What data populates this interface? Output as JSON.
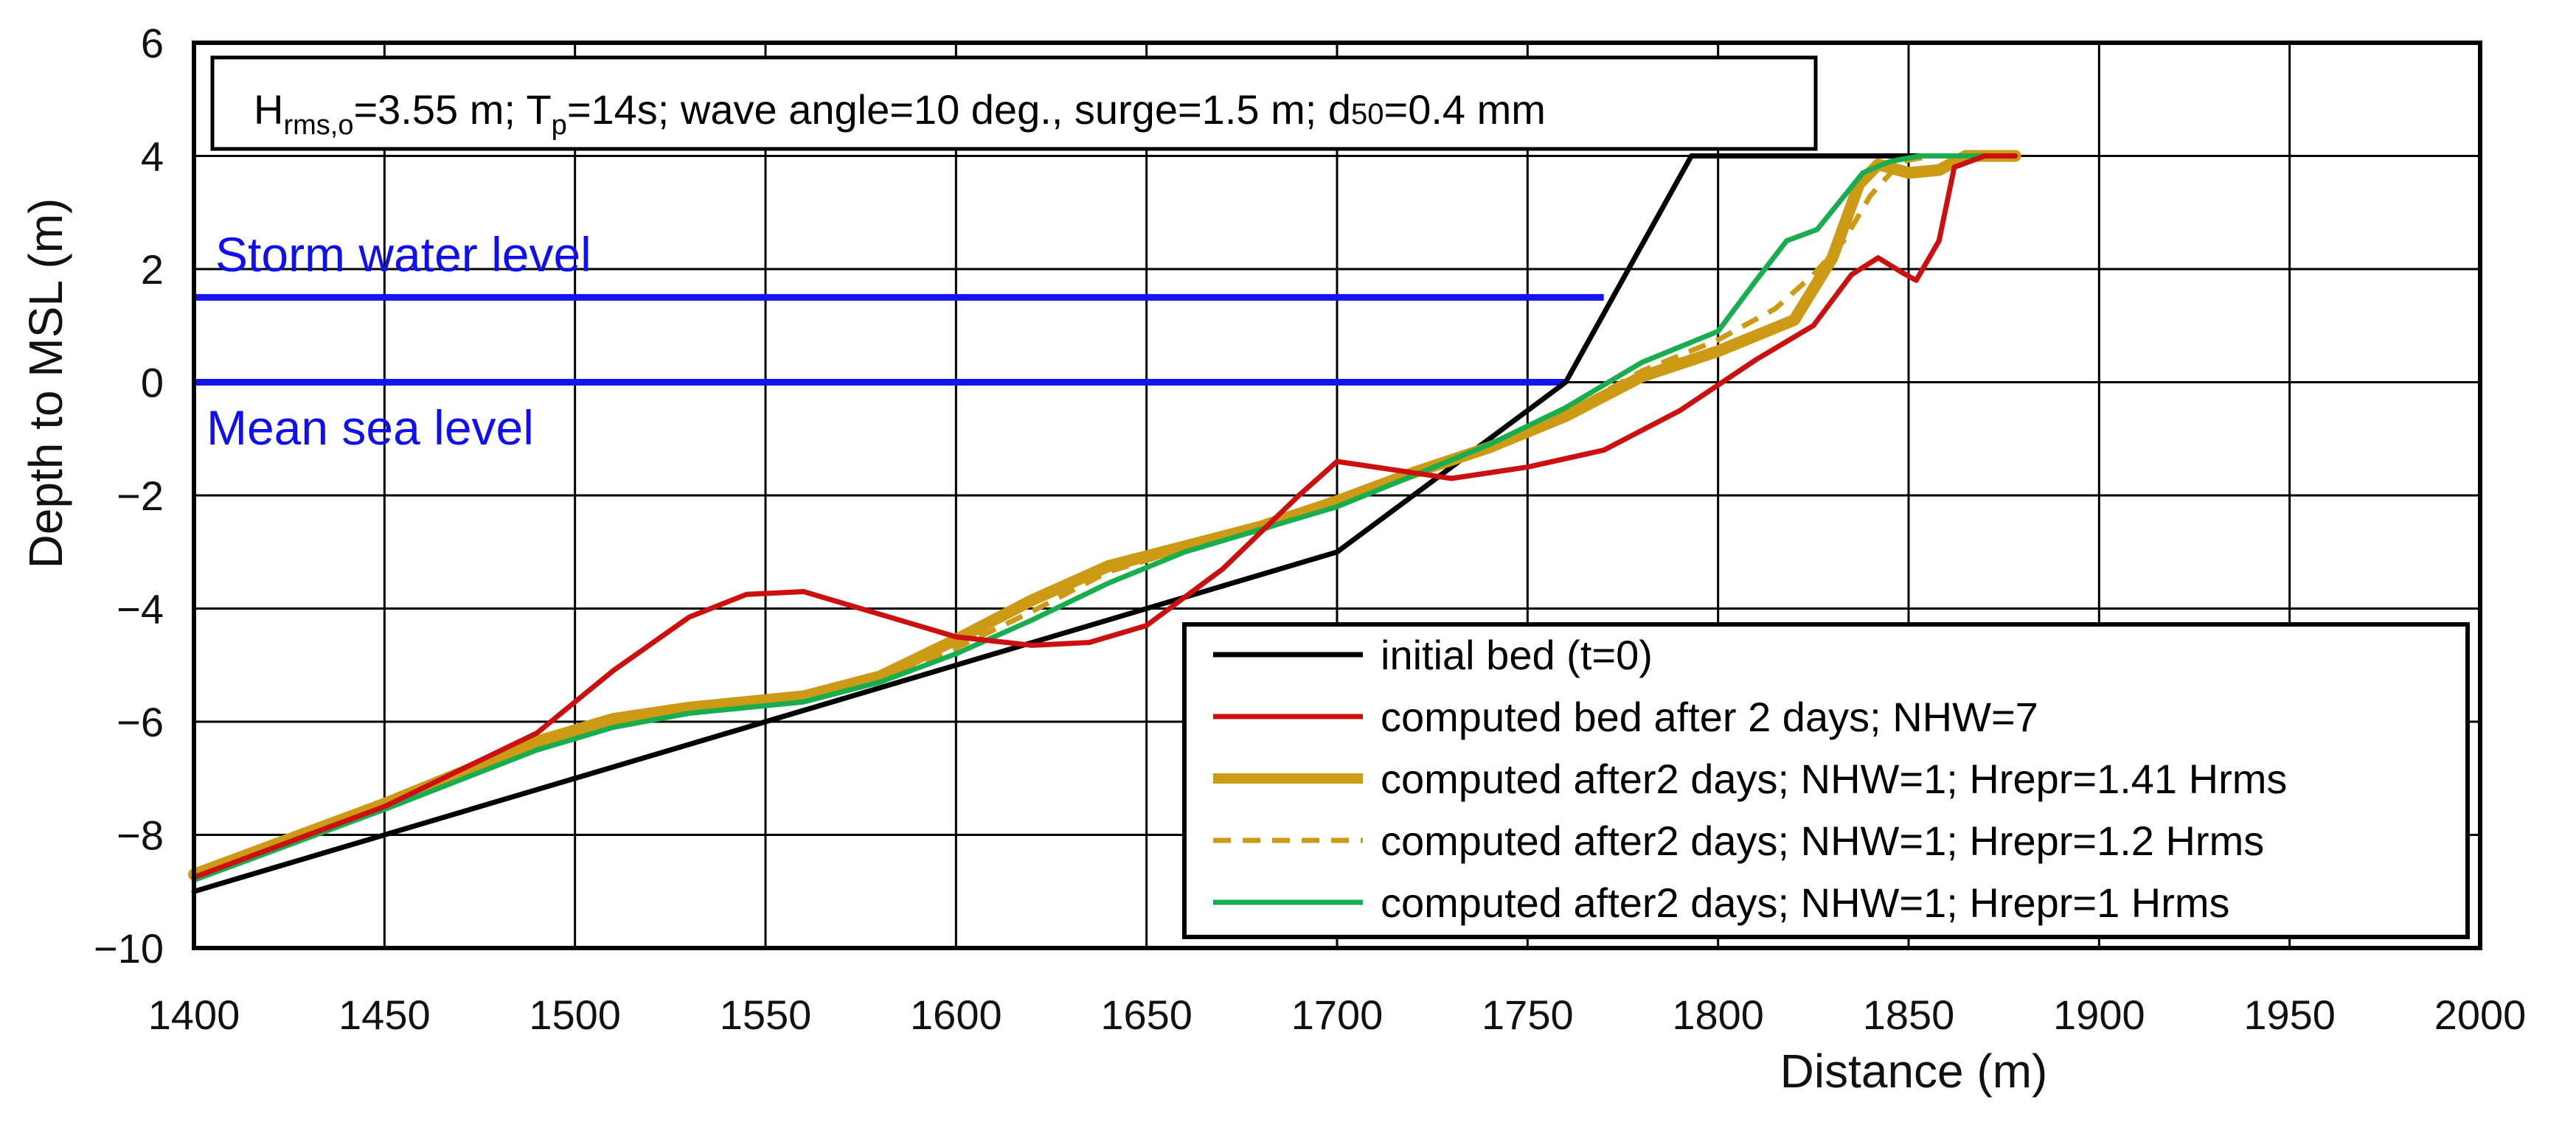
{
  "chart_data": {
    "type": "line",
    "title": "",
    "info_box": {
      "H_main": "H",
      "H_sub": "rms,o",
      "after_H": "=3.55 m; T",
      "T_sub": "p",
      "after_T": "=14s; wave angle=10 deg., surge=1.5 m; d",
      "d_sub": "50",
      "after_d": "=0.4 mm"
    },
    "xlabel": "Distance (m)",
    "ylabel": "Depth to MSL (m)",
    "xlim": [
      1400,
      2000
    ],
    "ylim": [
      -10,
      6
    ],
    "xticks": [
      1400,
      1450,
      1500,
      1550,
      1600,
      1650,
      1700,
      1750,
      1800,
      1850,
      1900,
      1950,
      2000
    ],
    "yticks": [
      6,
      4,
      2,
      0,
      -2,
      -4,
      -6,
      -8,
      -10
    ],
    "ytick_labels": [
      "6",
      "4",
      "2",
      "0",
      "−2",
      "−4",
      "−6",
      "−8",
      "−10"
    ],
    "grid": true,
    "legend_position": "lower-right",
    "reference_lines": [
      {
        "name": "Storm water level",
        "y": 1.5,
        "x_range": [
          1400,
          1770
        ],
        "color": "#1414ee",
        "label_position": "above"
      },
      {
        "name": "Mean sea level",
        "y": 0,
        "x_range": [
          1400,
          1760
        ],
        "color": "#1414ee",
        "label_position": "below"
      }
    ],
    "series": [
      {
        "name": "initial bed (t=0)",
        "color": "#000000",
        "style": "solid",
        "width": "normal",
        "x": [
          1400,
          1700,
          1760,
          1793,
          1878
        ],
        "y": [
          -9,
          -3,
          0,
          4,
          4
        ]
      },
      {
        "name": "computed bed after 2 days; NHW=7",
        "color": "#cc1010",
        "style": "solid",
        "width": "normal",
        "x": [
          1400,
          1450,
          1490,
          1510,
          1530,
          1545,
          1560,
          1580,
          1600,
          1620,
          1635,
          1650,
          1670,
          1690,
          1700,
          1710,
          1730,
          1750,
          1770,
          1790,
          1810,
          1825,
          1835,
          1842,
          1848,
          1852,
          1858,
          1862,
          1870,
          1878
        ],
        "y": [
          -8.75,
          -7.5,
          -6.2,
          -5.1,
          -4.15,
          -3.75,
          -3.7,
          -4.1,
          -4.5,
          -4.65,
          -4.6,
          -4.3,
          -3.3,
          -2.0,
          -1.4,
          -1.5,
          -1.7,
          -1.5,
          -1.2,
          -0.5,
          0.4,
          1.0,
          1.9,
          2.2,
          1.95,
          1.8,
          2.5,
          3.8,
          4.0,
          4.0
        ]
      },
      {
        "name": "computed after2 days; NHW=1; Hrepr=1.41 Hrms",
        "color": "#cc9a15",
        "style": "thick",
        "width": "thick",
        "x": [
          1400,
          1450,
          1490,
          1510,
          1530,
          1560,
          1580,
          1600,
          1620,
          1640,
          1660,
          1680,
          1700,
          1720,
          1740,
          1760,
          1780,
          1800,
          1820,
          1830,
          1837,
          1842,
          1850,
          1858,
          1865,
          1878
        ],
        "y": [
          -8.7,
          -7.45,
          -6.35,
          -5.95,
          -5.75,
          -5.55,
          -5.2,
          -4.55,
          -3.85,
          -3.25,
          -2.9,
          -2.55,
          -2.1,
          -1.6,
          -1.15,
          -0.6,
          0.1,
          0.55,
          1.1,
          2.2,
          3.5,
          3.85,
          3.7,
          3.75,
          4.0,
          4.0
        ]
      },
      {
        "name": "computed after2 days; NHW=1; Hrepr=1.2 Hrms",
        "color": "#cc9a15",
        "style": "dashed",
        "width": "normal",
        "x": [
          1400,
          1450,
          1490,
          1510,
          1530,
          1560,
          1580,
          1600,
          1620,
          1640,
          1660,
          1680,
          1700,
          1720,
          1740,
          1760,
          1780,
          1800,
          1815,
          1825,
          1833,
          1840,
          1848,
          1856,
          1865,
          1878
        ],
        "y": [
          -8.75,
          -7.5,
          -6.45,
          -6.05,
          -5.8,
          -5.6,
          -5.25,
          -4.7,
          -4.05,
          -3.35,
          -2.95,
          -2.6,
          -2.15,
          -1.6,
          -1.1,
          -0.55,
          0.2,
          0.75,
          1.3,
          1.9,
          2.5,
          3.3,
          3.9,
          4.0,
          4.0,
          4.0
        ]
      },
      {
        "name": "computed after2 days; NHW=1; Hrepr=1 Hrms",
        "color": "#18ae50",
        "style": "solid",
        "width": "normal",
        "x": [
          1400,
          1450,
          1490,
          1510,
          1530,
          1560,
          1580,
          1600,
          1620,
          1640,
          1660,
          1680,
          1700,
          1720,
          1740,
          1760,
          1780,
          1800,
          1810,
          1818,
          1826,
          1832,
          1838,
          1845,
          1853,
          1862,
          1878
        ],
        "y": [
          -8.8,
          -7.55,
          -6.5,
          -6.1,
          -5.85,
          -5.65,
          -5.3,
          -4.8,
          -4.2,
          -3.55,
          -3.0,
          -2.6,
          -2.2,
          -1.65,
          -1.1,
          -0.45,
          0.35,
          0.9,
          1.8,
          2.5,
          2.7,
          3.2,
          3.7,
          3.9,
          4.0,
          4.0,
          4.0
        ]
      }
    ]
  }
}
